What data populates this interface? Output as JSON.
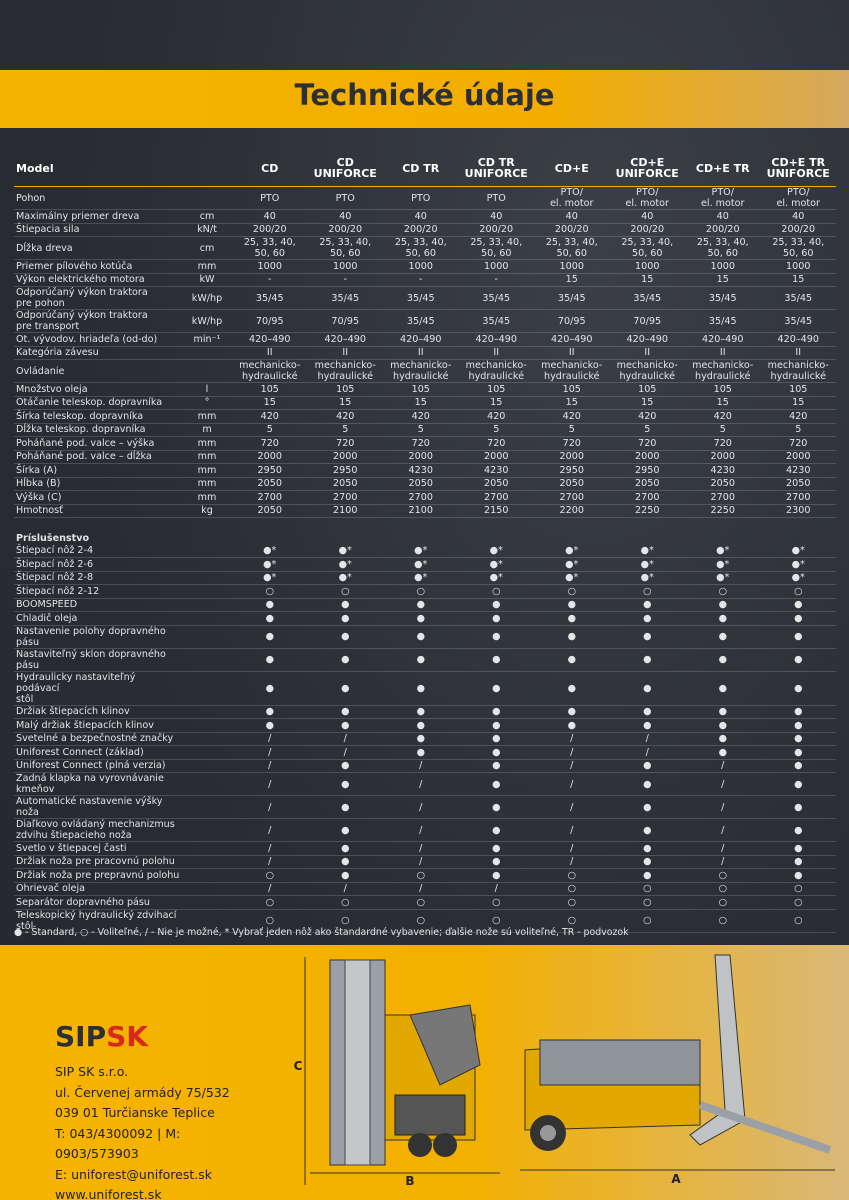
{
  "title": "Technické údaje",
  "table": {
    "model_label": "Model",
    "models": [
      "CD",
      "CD UNIFORCE",
      "CD TR",
      "CD TR\nUNIFORCE",
      "CD+E",
      "CD+E\nUNIFORCE",
      "CD+E TR",
      "CD+E TR\nUNIFORCE"
    ],
    "rows": [
      {
        "label": "Pohon",
        "values": [
          "PTO",
          "PTO",
          "PTO",
          "PTO",
          "PTO/\nel. motor",
          "PTO/\nel. motor",
          "PTO/\nel. motor",
          "PTO/\nel. motor"
        ]
      },
      {
        "label": "Maximálny priemer dreva",
        "unit": "cm",
        "values": [
          "40",
          "40",
          "40",
          "40",
          "40",
          "40",
          "40",
          "40"
        ]
      },
      {
        "label": "Štiepacia sila",
        "unit": "kN/t",
        "values": [
          "200/20",
          "200/20",
          "200/20",
          "200/20",
          "200/20",
          "200/20",
          "200/20",
          "200/20"
        ]
      },
      {
        "label": "Dĺžka dreva",
        "unit": "cm",
        "values": [
          "25, 33, 40,\n50, 60",
          "25, 33, 40,\n50, 60",
          "25, 33, 40,\n50, 60",
          "25, 33, 40,\n50, 60",
          "25, 33, 40,\n50, 60",
          "25, 33, 40,\n50, 60",
          "25, 33, 40,\n50, 60",
          "25, 33, 40,\n50, 60"
        ]
      },
      {
        "label": "Priemer pílového kotúča",
        "unit": "mm",
        "values": [
          "1000",
          "1000",
          "1000",
          "1000",
          "1000",
          "1000",
          "1000",
          "1000"
        ]
      },
      {
        "label": "Výkon elektrického motora",
        "unit": "kW",
        "values": [
          "-",
          "-",
          "-",
          "-",
          "15",
          "15",
          "15",
          "15"
        ]
      },
      {
        "label": "Odporúčaný výkon traktora\npre pohon",
        "unit": "kW/hp",
        "values": [
          "35/45",
          "35/45",
          "35/45",
          "35/45",
          "35/45",
          "35/45",
          "35/45",
          "35/45"
        ]
      },
      {
        "label": "Odporúčaný výkon traktora\npre transport",
        "unit": "kW/hp",
        "values": [
          "70/95",
          "70/95",
          "35/45",
          "35/45",
          "70/95",
          "70/95",
          "35/45",
          "35/45"
        ]
      },
      {
        "label": "Ot. vývodov. hriadeľa (od-do)",
        "unit": "min⁻¹",
        "values": [
          "420–490",
          "420–490",
          "420–490",
          "420–490",
          "420–490",
          "420–490",
          "420–490",
          "420–490"
        ]
      },
      {
        "label": "Kategória závesu",
        "values": [
          "II",
          "II",
          "II",
          "II",
          "II",
          "II",
          "II",
          "II"
        ]
      },
      {
        "label": "Ovládanie",
        "values": [
          "mechanicko-\nhydraulické",
          "mechanicko-\nhydraulické",
          "mechanicko-\nhydraulické",
          "mechanicko-\nhydraulické",
          "mechanicko-\nhydraulické",
          "mechanicko-\nhydraulické",
          "mechanicko-\nhydraulické",
          "mechanicko-\nhydraulické"
        ]
      },
      {
        "label": "Množstvo oleja",
        "unit": "l",
        "values": [
          "105",
          "105",
          "105",
          "105",
          "105",
          "105",
          "105",
          "105"
        ]
      },
      {
        "label": "Otáčanie teleskop. dopravníka",
        "unit": "°",
        "values": [
          "15",
          "15",
          "15",
          "15",
          "15",
          "15",
          "15",
          "15"
        ]
      },
      {
        "label": "Šírka teleskop. dopravníka",
        "unit": "mm",
        "values": [
          "420",
          "420",
          "420",
          "420",
          "420",
          "420",
          "420",
          "420"
        ]
      },
      {
        "label": "Dĺžka teleskop. dopravníka",
        "unit": "m",
        "values": [
          "5",
          "5",
          "5",
          "5",
          "5",
          "5",
          "5",
          "5"
        ]
      },
      {
        "label": "Poháňané pod. valce – výška",
        "unit": "mm",
        "values": [
          "720",
          "720",
          "720",
          "720",
          "720",
          "720",
          "720",
          "720"
        ]
      },
      {
        "label": "Poháňané pod. valce – dĺžka",
        "unit": "mm",
        "values": [
          "2000",
          "2000",
          "2000",
          "2000",
          "2000",
          "2000",
          "2000",
          "2000"
        ]
      },
      {
        "label": "Šírka (A)",
        "unit": "mm",
        "values": [
          "2950",
          "2950",
          "4230",
          "4230",
          "2950",
          "2950",
          "4230",
          "4230"
        ]
      },
      {
        "label": "Hĺbka (B)",
        "unit": "mm",
        "values": [
          "2050",
          "2050",
          "2050",
          "2050",
          "2050",
          "2050",
          "2050",
          "2050"
        ]
      },
      {
        "label": "Výška (C)",
        "unit": "mm",
        "values": [
          "2700",
          "2700",
          "2700",
          "2700",
          "2700",
          "2700",
          "2700",
          "2700"
        ]
      },
      {
        "label": "Hmotnosť",
        "unit": "kg",
        "values": [
          "2050",
          "2100",
          "2100",
          "2150",
          "2200",
          "2250",
          "2250",
          "2300"
        ]
      }
    ]
  },
  "accessories": {
    "heading": "Príslušenstvo",
    "rows": [
      {
        "label": "Štiepací nôž 2-4",
        "values": [
          "●*",
          "●*",
          "●*",
          "●*",
          "●*",
          "●*",
          "●*",
          "●*"
        ]
      },
      {
        "label": "Štiepací nôž 2-6",
        "values": [
          "●*",
          "●*",
          "●*",
          "●*",
          "●*",
          "●*",
          "●*",
          "●*"
        ]
      },
      {
        "label": "Štiepací nôž 2-8",
        "values": [
          "●*",
          "●*",
          "●*",
          "●*",
          "●*",
          "●*",
          "●*",
          "●*"
        ]
      },
      {
        "label": "Štiepací nôž 2-12",
        "values": [
          "○",
          "○",
          "○",
          "○",
          "○",
          "○",
          "○",
          "○"
        ]
      },
      {
        "label": "BOOMSPEED",
        "values": [
          "●",
          "●",
          "●",
          "●",
          "●",
          "●",
          "●",
          "●"
        ]
      },
      {
        "label": "Chladič oleja",
        "values": [
          "●",
          "●",
          "●",
          "●",
          "●",
          "●",
          "●",
          "●"
        ]
      },
      {
        "label": "Nastavenie polohy dopravného pásu",
        "values": [
          "●",
          "●",
          "●",
          "●",
          "●",
          "●",
          "●",
          "●"
        ]
      },
      {
        "label": "Nastaviteľný sklon dopravného\npásu",
        "values": [
          "●",
          "●",
          "●",
          "●",
          "●",
          "●",
          "●",
          "●"
        ]
      },
      {
        "label": "Hydraulicky nastaviteľný podávací\nstôl",
        "values": [
          "●",
          "●",
          "●",
          "●",
          "●",
          "●",
          "●",
          "●"
        ]
      },
      {
        "label": "Držiak štiepacích klinov",
        "values": [
          "●",
          "●",
          "●",
          "●",
          "●",
          "●",
          "●",
          "●"
        ]
      },
      {
        "label": "Malý držiak štiepacích klinov",
        "values": [
          "●",
          "●",
          "●",
          "●",
          "●",
          "●",
          "●",
          "●"
        ]
      },
      {
        "label": "Svetelné a bezpečnostné značky",
        "values": [
          "/",
          "/",
          "●",
          "●",
          "/",
          "/",
          "●",
          "●"
        ]
      },
      {
        "label": "Uniforest Connect (základ)",
        "values": [
          "/",
          "/",
          "●",
          "●",
          "/",
          "/",
          "●",
          "●"
        ]
      },
      {
        "label": "Uniforest Connect (plná verzia)",
        "values": [
          "/",
          "●",
          "/",
          "●",
          "/",
          "●",
          "/",
          "●"
        ]
      },
      {
        "label": "Zadná klapka na vyrovnávanie kmeňov",
        "values": [
          "/",
          "●",
          "/",
          "●",
          "/",
          "●",
          "/",
          "●"
        ]
      },
      {
        "label": "Automatické nastavenie výšky noža",
        "values": [
          "/",
          "●",
          "/",
          "●",
          "/",
          "●",
          "/",
          "●"
        ]
      },
      {
        "label": "Diaľkovo ovládaný mechanizmus\nzdvihu štiepacieho noža",
        "values": [
          "/",
          "●",
          "/",
          "●",
          "/",
          "●",
          "/",
          "●"
        ]
      },
      {
        "label": "Svetlo v štiepacej časti",
        "values": [
          "/",
          "●",
          "/",
          "●",
          "/",
          "●",
          "/",
          "●"
        ]
      },
      {
        "label": "Držiak noža pre pracovnú polohu",
        "values": [
          "/",
          "●",
          "/",
          "●",
          "/",
          "●",
          "/",
          "●"
        ]
      },
      {
        "label": "Držiak noža pre prepravnú polohu",
        "values": [
          "○",
          "●",
          "○",
          "●",
          "○",
          "●",
          "○",
          "●"
        ]
      },
      {
        "label": "Ohrievač oleja",
        "values": [
          "/",
          "/",
          "/",
          "/",
          "○",
          "○",
          "○",
          "○"
        ]
      },
      {
        "label": "Separátor dopravného pásu",
        "values": [
          "○",
          "○",
          "○",
          "○",
          "○",
          "○",
          "○",
          "○"
        ]
      },
      {
        "label": "Teleskopický hydraulický zdvihací stôl",
        "values": [
          "○",
          "○",
          "○",
          "○",
          "○",
          "○",
          "○",
          "○"
        ]
      }
    ]
  },
  "legend": "● - Štandard, ○ - Voliteľné, / - Nie je možné, * Vybrať jeden nôž ako štandardné vybavenie; ďalšie nože sú voliteľné, TR - podvozok",
  "footer": {
    "logo_left": "SIP",
    "logo_right": "SK",
    "lines": [
      "SIP SK s.r.o.",
      "ul. Červenej armády 75/532",
      "039 01 Turčianske Teplice",
      "T: 043/4300092 | M:",
      "0903/573903",
      "E: uniforest@uniforest.sk",
      "www.uniforest.sk"
    ]
  },
  "drawing_labels": {
    "c": "C",
    "b": "B",
    "a": "A"
  }
}
